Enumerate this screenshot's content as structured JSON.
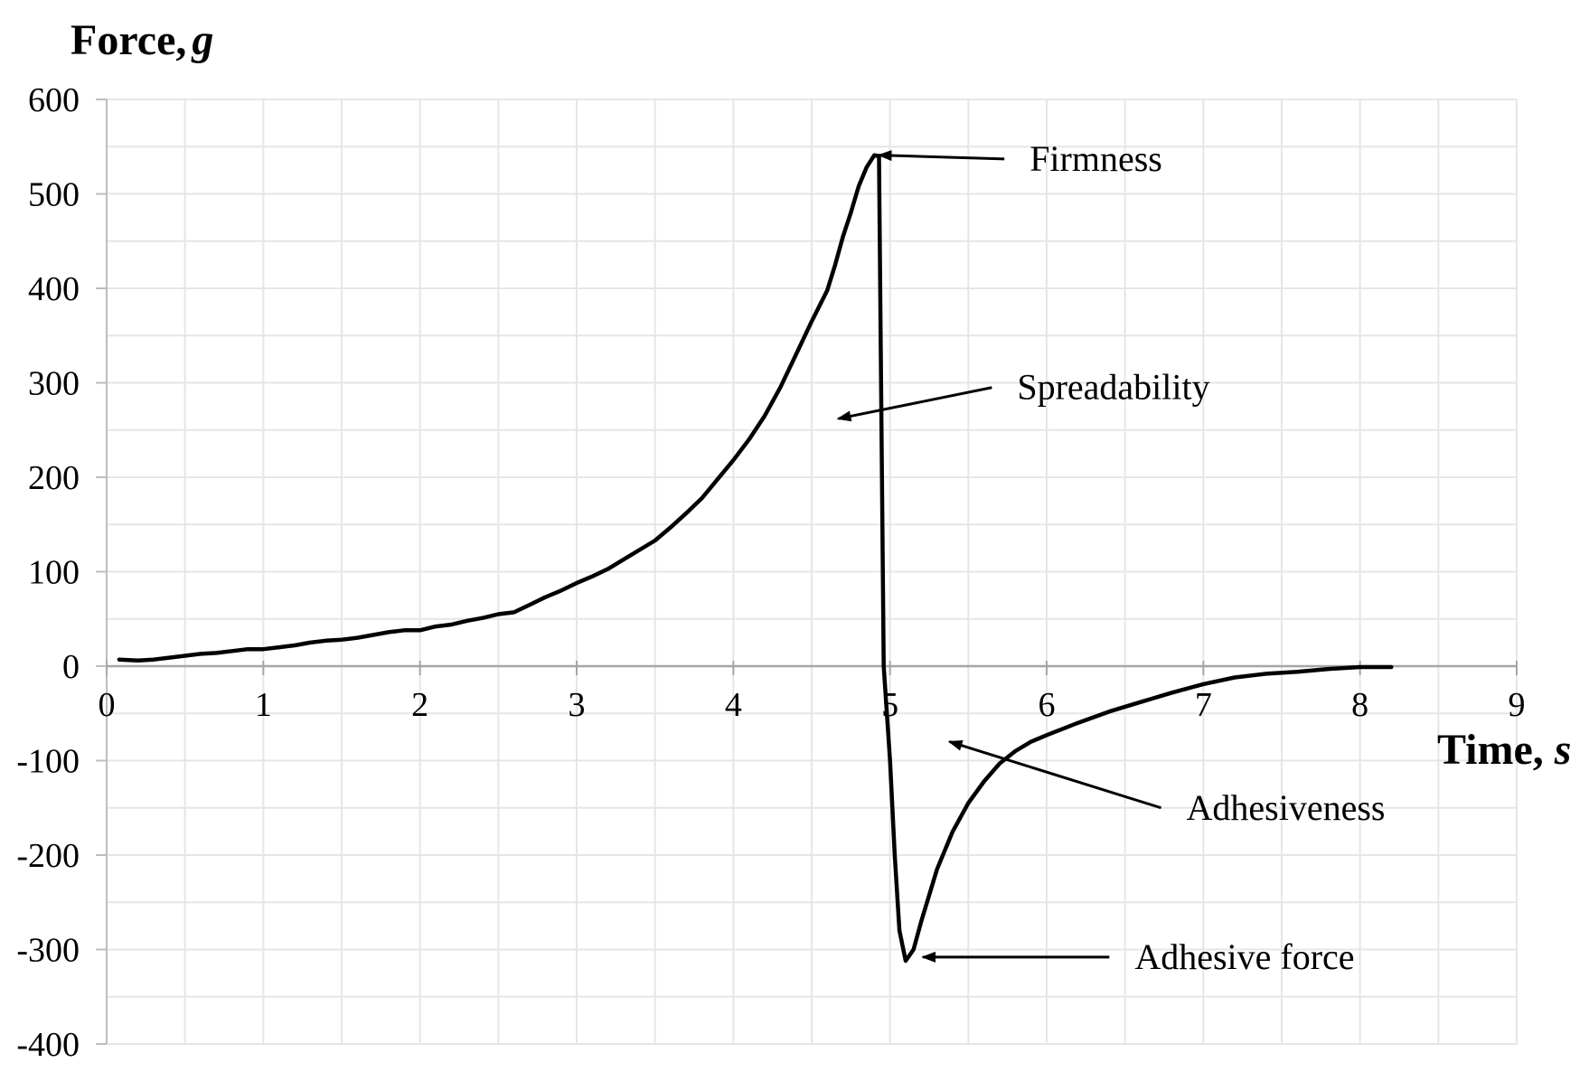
{
  "chart_data": {
    "type": "line",
    "title": "",
    "ylabel": "Force,",
    "ylabel_unit": "g",
    "xlabel": "Time,",
    "xlabel_unit": "s",
    "xlim": [
      0,
      9
    ],
    "ylim": [
      -400,
      600
    ],
    "x_ticks": [
      0,
      1,
      2,
      3,
      4,
      5,
      6,
      7,
      8,
      9
    ],
    "y_ticks": [
      600,
      500,
      400,
      300,
      200,
      100,
      0,
      -100,
      -200,
      -300,
      -400
    ],
    "x_tick_labels": [
      "0",
      "1",
      "2",
      "3",
      "4",
      "5",
      "6",
      "7",
      "8",
      "9"
    ],
    "y_tick_labels": [
      "600",
      "500",
      "400",
      "300",
      "200",
      "100",
      "0",
      "-100",
      "-200",
      "-300",
      "-400"
    ],
    "grid": true,
    "legend": "none",
    "line_color": "#000000",
    "grid_color": "#e6e6e6",
    "series": [
      {
        "points": [
          [
            0.08,
            7
          ],
          [
            0.2,
            6
          ],
          [
            0.3,
            7
          ],
          [
            0.4,
            9
          ],
          [
            0.5,
            11
          ],
          [
            0.6,
            13
          ],
          [
            0.7,
            14
          ],
          [
            0.8,
            16
          ],
          [
            0.9,
            18
          ],
          [
            1.0,
            18
          ],
          [
            1.1,
            20
          ],
          [
            1.2,
            22
          ],
          [
            1.3,
            25
          ],
          [
            1.4,
            27
          ],
          [
            1.5,
            28
          ],
          [
            1.6,
            30
          ],
          [
            1.7,
            33
          ],
          [
            1.8,
            36
          ],
          [
            1.9,
            38
          ],
          [
            2.0,
            38
          ],
          [
            2.1,
            42
          ],
          [
            2.2,
            44
          ],
          [
            2.3,
            48
          ],
          [
            2.4,
            51
          ],
          [
            2.5,
            55
          ],
          [
            2.6,
            57
          ],
          [
            2.7,
            65
          ],
          [
            2.8,
            73
          ],
          [
            2.9,
            80
          ],
          [
            3.0,
            88
          ],
          [
            3.1,
            95
          ],
          [
            3.2,
            103
          ],
          [
            3.3,
            113
          ],
          [
            3.4,
            123
          ],
          [
            3.5,
            133
          ],
          [
            3.6,
            147
          ],
          [
            3.7,
            162
          ],
          [
            3.8,
            178
          ],
          [
            3.9,
            198
          ],
          [
            4.0,
            218
          ],
          [
            4.1,
            240
          ],
          [
            4.2,
            265
          ],
          [
            4.3,
            295
          ],
          [
            4.4,
            330
          ],
          [
            4.5,
            365
          ],
          [
            4.6,
            398
          ],
          [
            4.65,
            425
          ],
          [
            4.7,
            455
          ],
          [
            4.75,
            480
          ],
          [
            4.8,
            508
          ],
          [
            4.85,
            528
          ],
          [
            4.9,
            541
          ],
          [
            4.93,
            540
          ],
          [
            4.94,
            350
          ],
          [
            4.96,
            0
          ],
          [
            5.0,
            -100
          ],
          [
            5.03,
            -200
          ],
          [
            5.06,
            -280
          ],
          [
            5.1,
            -312
          ],
          [
            5.15,
            -300
          ],
          [
            5.2,
            -270
          ],
          [
            5.3,
            -215
          ],
          [
            5.4,
            -175
          ],
          [
            5.5,
            -145
          ],
          [
            5.6,
            -122
          ],
          [
            5.7,
            -103
          ],
          [
            5.8,
            -90
          ],
          [
            5.9,
            -80
          ],
          [
            6.0,
            -73
          ],
          [
            6.2,
            -60
          ],
          [
            6.4,
            -48
          ],
          [
            6.6,
            -38
          ],
          [
            6.8,
            -28
          ],
          [
            7.0,
            -19
          ],
          [
            7.2,
            -12
          ],
          [
            7.4,
            -8
          ],
          [
            7.6,
            -6
          ],
          [
            7.8,
            -3
          ],
          [
            8.0,
            -1
          ],
          [
            8.2,
            -1
          ]
        ]
      }
    ],
    "annotations": [
      {
        "text": "Firmness",
        "point": [
          4.93,
          541
        ],
        "arrow_from": [
          5.73,
          537
        ]
      },
      {
        "text": "Spreadability",
        "point": [
          4.67,
          262
        ],
        "arrow_from": [
          5.65,
          295
        ]
      },
      {
        "text": "Adhesiveness",
        "point": [
          5.38,
          -80
        ],
        "arrow_from": [
          6.73,
          -150
        ]
      },
      {
        "text": "Adhesive force",
        "point": [
          5.21,
          -308
        ],
        "arrow_from": [
          6.4,
          -308
        ]
      }
    ]
  }
}
